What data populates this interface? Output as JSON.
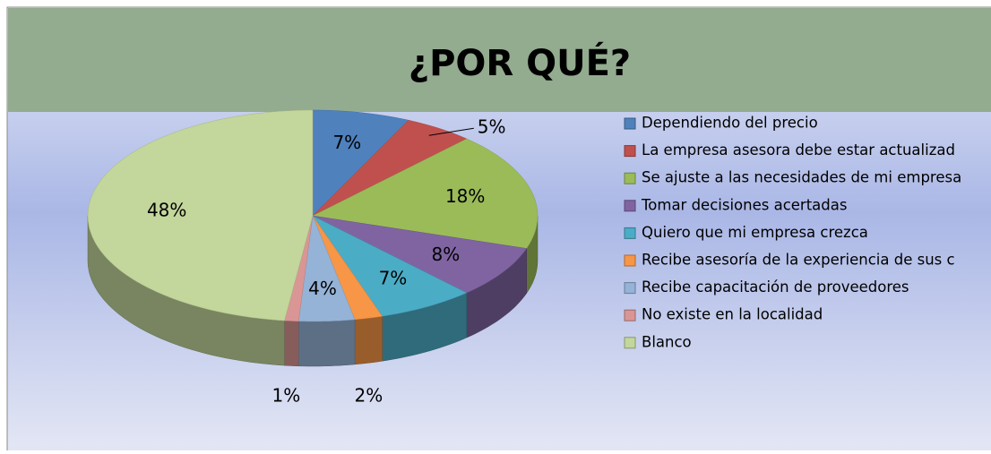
{
  "chart_data": {
    "type": "pie3d",
    "title": "¿POR QUÉ?",
    "categories": [
      "Dependiendo del precio",
      "La empresa asesora debe estar actualizad",
      "Se ajuste a las necesidades de mi empresa",
      "Tomar decisiones acertadas",
      "Quiero que mi empresa crezca",
      "Recibe asesoría de la experiencia de sus c",
      "Recibe capacitación de proveedores",
      "No existe en la localidad",
      "Blanco"
    ],
    "values": [
      7,
      5,
      18,
      8,
      7,
      2,
      4,
      1,
      48
    ],
    "value_labels": [
      "7%",
      "5%",
      "18%",
      "8%",
      "7%",
      "2%",
      "4%",
      "1%",
      "48%"
    ],
    "colors": [
      "#4f81bd",
      "#c0504d",
      "#9bbb59",
      "#8064a2",
      "#4bacc6",
      "#f79646",
      "#95b3d7",
      "#d99694",
      "#c3d69b"
    ],
    "legend": "right"
  }
}
